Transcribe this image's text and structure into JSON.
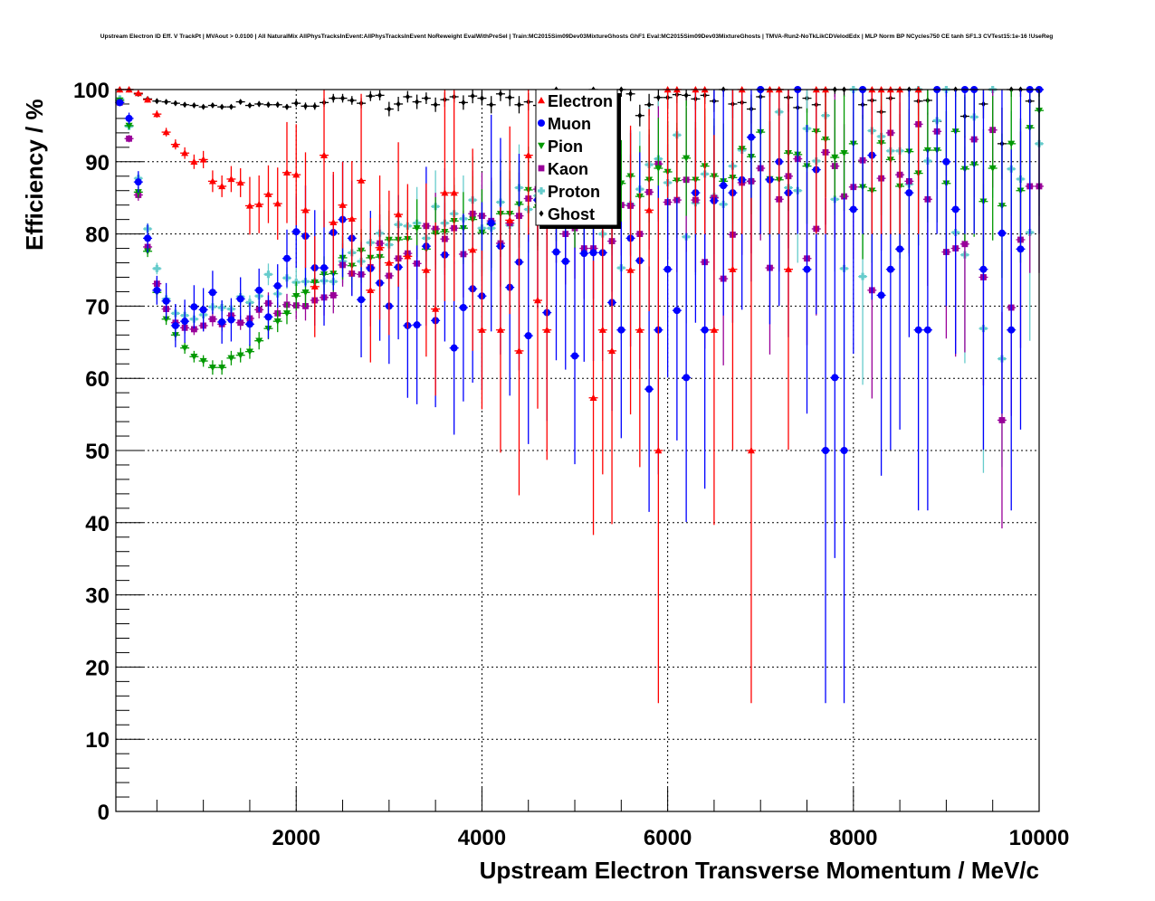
{
  "chart_data": {
    "type": "scatter",
    "title": "Upstream Electron ID Eff. V TrackPt | MVAout > 0.0100 | All NaturalMix AllPhysTracksInEvent:AllPhysTracksInEvent NoReweight EvalWithPreSel | Train:MC2015Sim09Dev03MixtureGhosts GhF1 Eval:MC2015Sim09Dev03MixtureGhosts | TMVA-Run2-NoTkLikCDVelodEdx | MLP Norm BP NCycles750 CE tanh SF1.3 CVTest15:1e-16 !UseReg",
    "xlabel": "Upstream Electron Transverse Momentum / MeV/c",
    "ylabel": "Efficiency / %",
    "xlim": [
      58,
      10000
    ],
    "ylim": [
      0,
      100
    ],
    "grid": true,
    "legend_placement": "top-center",
    "x_ticks": [
      2000,
      4000,
      6000,
      8000,
      10000
    ],
    "x_tick_labels": [
      "2000",
      "4000",
      "6000",
      "8000",
      "10000"
    ],
    "y_ticks": [
      0,
      10,
      20,
      30,
      40,
      50,
      60,
      70,
      80,
      90,
      100
    ],
    "y_tick_labels": [
      "0",
      "10",
      "20",
      "30",
      "40",
      "50",
      "60",
      "70",
      "80",
      "90",
      "100"
    ],
    "x_start": 100,
    "x_step": 100,
    "series": [
      {
        "name": "Electron",
        "color": "#ff0000",
        "marker": "triangle-up",
        "values": [
          100,
          100,
          99.5,
          98.6,
          96.6,
          94.1,
          92.4,
          91.2,
          90.0,
          90.3,
          87.3,
          86.6,
          87.6,
          87.1,
          83.9,
          84.1,
          85.5,
          84.2,
          88.5,
          88.2,
          83.3,
          72.7,
          90.9,
          81.6,
          84.0,
          82.1,
          87.4,
          72.2,
          78.1,
          76.0,
          82.7,
          76.9,
          null,
          75.0,
          69.6,
          85.7,
          85.7,
          null,
          77.8,
          66.7,
          null,
          66.7,
          81.9,
          63.8,
          90.9,
          70.8,
          66.7,
          null,
          null,
          null,
          null,
          57.3,
          66.7,
          63.8,
          null,
          75.0,
          66.7,
          83.3,
          50.0,
          100,
          100,
          null,
          100,
          100,
          66.7,
          null,
          75.1,
          100,
          50.0,
          null,
          100,
          100,
          75.1,
          null,
          null,
          100,
          100,
          null,
          null,
          null,
          null,
          100,
          100,
          100,
          100,
          null,
          100,
          null,
          null,
          null,
          null,
          null,
          null,
          null,
          null,
          null,
          null,
          null,
          null,
          null
        ],
        "errors": [
          0.2,
          0.2,
          0.3,
          0.4,
          0.5,
          0.6,
          0.7,
          0.8,
          1,
          1.2,
          1.5,
          1.5,
          1.8,
          2,
          4,
          4,
          4,
          5,
          7,
          7,
          8,
          7,
          10,
          7,
          6,
          8,
          12,
          10,
          10,
          10,
          10,
          10,
          0,
          12,
          12,
          15,
          15,
          0,
          14,
          11,
          0,
          17,
          13,
          20,
          11,
          15,
          18,
          0,
          0,
          0,
          0,
          19,
          20,
          24,
          0,
          20,
          19,
          14,
          35,
          15,
          15,
          0,
          20,
          20,
          27,
          0,
          25,
          20,
          35,
          0,
          20,
          20,
          25,
          0,
          0,
          20,
          20,
          0,
          0,
          0,
          0,
          20,
          20,
          20,
          20,
          0,
          20,
          0,
          0,
          0,
          0,
          0,
          0,
          0,
          0,
          0,
          0,
          0,
          0,
          0
        ]
      },
      {
        "name": "Muon",
        "color": "#0000ff",
        "marker": "circle",
        "values": [
          98.2,
          96.0,
          87.2,
          79.4,
          72.2,
          70.7,
          67.3,
          67.9,
          69.9,
          69.5,
          71.9,
          67.8,
          68.1,
          71.0,
          67.5,
          72.2,
          68.5,
          72.8,
          76.6,
          80.3,
          79.7,
          75.3,
          75.3,
          80.2,
          82.0,
          79.4,
          70.9,
          75.2,
          73.2,
          70.0,
          75.4,
          67.3,
          67.4,
          78.3,
          68.0,
          77.1,
          64.2,
          69.8,
          72.4,
          71.4,
          81.5,
          78.3,
          72.6,
          76.1,
          65.9,
          84.7,
          69.1,
          77.5,
          76.2,
          63.1,
          77.3,
          77.4,
          77.4,
          70.5,
          66.7,
          79.4,
          76.3,
          58.5,
          66.7,
          75.1,
          69.4,
          60.1,
          85.7,
          66.7,
          84.6,
          86.7,
          85.7,
          87.5,
          93.4,
          100,
          87.5,
          90.0,
          85.7,
          100,
          75.1,
          88.9,
          50.0,
          60.1,
          50.0,
          83.4,
          100,
          90.9,
          71.5,
          75.1,
          77.9,
          85.7,
          66.7,
          66.7,
          100,
          90.0,
          83.4,
          100,
          100,
          75.1,
          null,
          80.1,
          66.7,
          77.9,
          100,
          100
        ],
        "errors": [
          0.5,
          0.8,
          1.5,
          2,
          2,
          2.5,
          3,
          3,
          3,
          3,
          3,
          3,
          3,
          3,
          3,
          3,
          3,
          3,
          4,
          5,
          7,
          8,
          8,
          8,
          8,
          8,
          8,
          8,
          8,
          8,
          10,
          10,
          11,
          11,
          12,
          12,
          12,
          13,
          13,
          13,
          15,
          15,
          15,
          15,
          15,
          15,
          15,
          15,
          15,
          15,
          15,
          15,
          15,
          15,
          15,
          15,
          15,
          17,
          20,
          15,
          18,
          20,
          18,
          22,
          18,
          18,
          18,
          18,
          20,
          20,
          20,
          20,
          20,
          20,
          20,
          20,
          35,
          25,
          35,
          20,
          20,
          20,
          25,
          25,
          25,
          20,
          25,
          25,
          20,
          20,
          20,
          20,
          20,
          25,
          0,
          25,
          25,
          25,
          20,
          20
        ]
      },
      {
        "name": "Pion",
        "color": "#009900",
        "marker": "triangle-down",
        "values": [
          98.5,
          95.0,
          85.8,
          77.6,
          71.9,
          68.2,
          66.0,
          64.2,
          63.0,
          62.4,
          61.5,
          61.5,
          62.8,
          63.2,
          63.7,
          65.2,
          66.9,
          67.9,
          69.0,
          71.4,
          71.9,
          73.3,
          74.4,
          74.5,
          76.7,
          75.6,
          77.7,
          76.7,
          76.8,
          79.2,
          79.2,
          79.3,
          80.8,
          77.9,
          80.1,
          80.3,
          81.8,
          80.8,
          82.0,
          80.2,
          81.3,
          82.8,
          82.8,
          84.1,
          86.1,
          83.7,
          84,
          85,
          86,
          84,
          85,
          86,
          86,
          84,
          87,
          88.0,
          85.2,
          87.5,
          89.1,
          88.6,
          87.4,
          90.5,
          87.5,
          89.4,
          88.0,
          87.3,
          87.8,
          91.8,
          90.7,
          94.1,
          87.6,
          87.5,
          91.2,
          91.0,
          89.4,
          94.2,
          93.1,
          90.6,
          91.2,
          92.5,
          86.5,
          86.0,
          92.6,
          90.3,
          86.6,
          91.4,
          88.4,
          91.6,
          91.6,
          87.0,
          94.2,
          89.0,
          89.6,
          84.5,
          89.1,
          83.9,
          92.5,
          86.0,
          94.7,
          97.1
        ],
        "errors": [
          0.3,
          0.5,
          0.8,
          0.8,
          0.8,
          0.8,
          0.8,
          0.8,
          0.8,
          0.8,
          1,
          1,
          1,
          1,
          1,
          1.2,
          1.5,
          1.5,
          1.5,
          2,
          2,
          2,
          2.5,
          2.5,
          3,
          3,
          3,
          3,
          3.5,
          4,
          4,
          4,
          4,
          4,
          5,
          5,
          5,
          5,
          6,
          6,
          6,
          6,
          6,
          6,
          6,
          6,
          6,
          6,
          6,
          6,
          6,
          6,
          6,
          6,
          6,
          6,
          7,
          7,
          7,
          7,
          8,
          8,
          8,
          8,
          8,
          8,
          8,
          8,
          8,
          6,
          8,
          8,
          8,
          8,
          8,
          8,
          8,
          8,
          8,
          8,
          10,
          10,
          10,
          10,
          10,
          10,
          10,
          10,
          10,
          10,
          8,
          10,
          10,
          10,
          10,
          10,
          10,
          10,
          8,
          5
        ]
      },
      {
        "name": "Kaon",
        "color": "#990099",
        "marker": "square",
        "values": [
          98.2,
          93.2,
          85.4,
          78.2,
          73.1,
          69.6,
          67.7,
          67.0,
          66.8,
          67.3,
          68.2,
          67.5,
          68.7,
          67.7,
          68.3,
          69.5,
          70.4,
          69.0,
          70.2,
          70.1,
          70.0,
          70.8,
          71.2,
          71.5,
          75.7,
          74.5,
          74.4,
          75.4,
          78.7,
          74.2,
          76.6,
          77.3,
          75.9,
          81.1,
          80.7,
          79.3,
          80.8,
          77.2,
          82.8,
          82.5,
          81.8,
          78.7,
          81.5,
          82.5,
          84.9,
          86.2,
          82,
          83,
          80.0,
          80.8,
          78.0,
          78,
          82,
          79,
          84,
          83.9,
          80.0,
          85.8,
          89.7,
          84.4,
          84.7,
          87.5,
          84.7,
          76.1,
          85.0,
          73.8,
          79.9,
          87.1,
          87.3,
          89.1,
          75.3,
          84.8,
          88.0,
          90.4,
          76.6,
          80.7,
          91.3,
          89.4,
          85.2,
          86.5,
          90.2,
          72.2,
          87.7,
          94.0,
          88.2,
          87.3,
          95.2,
          84.8,
          94.2,
          77.5,
          78.0,
          78.6,
          93.1,
          74.0,
          94.4,
          54.2,
          69.8,
          79.2,
          86.6,
          86.6
        ],
        "errors": [
          0.3,
          0.5,
          0.8,
          0.8,
          0.8,
          0.8,
          0.8,
          0.8,
          0.8,
          0.8,
          1,
          1,
          1,
          1,
          1,
          1.2,
          1.5,
          1.5,
          1.5,
          2,
          2,
          2,
          2.5,
          2.5,
          3,
          3,
          3,
          3,
          4,
          4,
          4,
          5,
          5,
          5,
          5,
          5,
          5,
          6,
          6,
          6,
          6,
          6,
          6,
          6,
          6,
          7,
          7,
          7,
          7,
          7,
          7,
          7,
          7,
          7,
          7,
          7,
          8,
          8,
          8,
          8,
          10,
          10,
          10,
          12,
          10,
          12,
          10,
          10,
          10,
          10,
          12,
          10,
          10,
          10,
          12,
          12,
          10,
          10,
          10,
          10,
          10,
          15,
          10,
          8,
          10,
          10,
          8,
          12,
          8,
          12,
          15,
          15,
          8,
          15,
          8,
          15,
          15,
          15,
          12,
          12
        ]
      },
      {
        "name": "Proton",
        "color": "#66cccc",
        "marker": "plus",
        "values": [
          98.7,
          94.9,
          87.7,
          80.7,
          75.2,
          71.0,
          69.0,
          68.7,
          68.2,
          68.8,
          69.9,
          69.8,
          69.6,
          71.3,
          70.5,
          71.4,
          74.4,
          71.7,
          73.9,
          73.3,
          73.4,
          73.4,
          73.5,
          73.4,
          76.2,
          77.4,
          76.2,
          78.8,
          80.1,
          78.5,
          81.3,
          81.1,
          81.5,
          79.4,
          83.8,
          81.5,
          82.8,
          82.1,
          84.7,
          80.8,
          80.8,
          84.4,
          81.2,
          86.4,
          83.4,
          85.3,
          84,
          83,
          82,
          85,
          83,
          84,
          80,
          84,
          75.3,
          84.1,
          86.2,
          89.6,
          90.4,
          87.1,
          93.7,
          79.6,
          84.3,
          88.3,
          85.2,
          84.1,
          89.4,
          91.6,
          87.3,
          100,
          null,
          96.9,
          86.4,
          86.0,
          94.6,
          90.1,
          96.4,
          84.8,
          75.2,
          100,
          74.1,
          94.3,
          93.5,
          91.5,
          91.5,
          86.9,
          100,
          90.1,
          95.7,
          100,
          80.2,
          77.1,
          96.2,
          66.9,
          100,
          62.7,
          89.0,
          87.6,
          80.2,
          92.5
        ],
        "errors": [
          0.3,
          0.5,
          0.8,
          0.8,
          0.8,
          0.8,
          0.8,
          0.8,
          0.8,
          0.8,
          1,
          1,
          1,
          1,
          1,
          1.2,
          1.5,
          1.5,
          1.5,
          2,
          2,
          2,
          2.5,
          2.5,
          3,
          3,
          3,
          3,
          4,
          4,
          4,
          5,
          5,
          5,
          5,
          5,
          5,
          6,
          6,
          6,
          6,
          6,
          6,
          6,
          6,
          7,
          7,
          7,
          7,
          7,
          7,
          7,
          7,
          7,
          10,
          7,
          8,
          8,
          8,
          8,
          8,
          12,
          10,
          8,
          8,
          10,
          8,
          6,
          8,
          15,
          0,
          6,
          10,
          10,
          6,
          8,
          5,
          10,
          15,
          10,
          15,
          6,
          6,
          8,
          8,
          10,
          15,
          8,
          6,
          12,
          15,
          15,
          6,
          20,
          15,
          15,
          8,
          8,
          15,
          10
        ]
      },
      {
        "name": "Ghost",
        "color": "#000000",
        "marker": "diamond",
        "values": [
          100,
          100,
          99.4,
          98.7,
          98.4,
          98.3,
          98.1,
          97.9,
          97.8,
          97.6,
          97.8,
          97.6,
          97.6,
          98.3,
          97.8,
          98.0,
          97.9,
          97.9,
          97.6,
          98.1,
          97.7,
          97.7,
          98.2,
          98.8,
          98.8,
          98.5,
          98.1,
          99.1,
          99.2,
          97.3,
          98.0,
          99.0,
          98.3,
          98.8,
          97.9,
          98.6,
          99.0,
          98.2,
          99.1,
          98.8,
          97.9,
          99.4,
          98.9,
          97.9,
          98.3,
          97.8,
          99,
          100,
          99,
          99.5,
          98,
          100,
          99,
          98.5,
          100,
          99.4,
          96.4,
          97.9,
          98.9,
          98.9,
          99.3,
          99.2,
          98.7,
          99.2,
          98.4,
          100,
          98.0,
          98.2,
          97.3,
          99.0,
          100,
          100,
          98.9,
          97.5,
          98.8,
          97.9,
          100,
          100,
          100,
          100,
          97.9,
          98.5,
          96.9,
          98.8,
          100,
          100,
          98.4,
          98.5,
          95.6,
          100,
          100,
          96.3,
          100,
          98.0,
          100,
          92.5,
          100,
          100,
          98.4,
          100
        ],
        "errors": [
          0.1,
          0.1,
          0.2,
          0.3,
          0.3,
          0.3,
          0.3,
          0.3,
          0.3,
          0.3,
          0.3,
          0.3,
          0.3,
          0.3,
          0.3,
          0.4,
          0.4,
          0.4,
          0.4,
          0.5,
          0.5,
          0.5,
          0.6,
          0.6,
          0.6,
          0.6,
          0.7,
          0.7,
          0.7,
          1,
          1,
          0.8,
          1,
          0.8,
          1,
          1,
          0.8,
          1,
          1,
          1,
          1.2,
          1,
          1.2,
          1.2,
          1.2,
          1.2,
          1.2,
          1,
          1.2,
          1,
          1.5,
          1,
          1.2,
          1.5,
          1,
          1,
          1.5,
          1.5,
          1.5,
          1.5,
          1.2,
          1.5,
          1.5,
          1.2,
          1.5,
          1,
          2,
          2,
          2,
          1.5,
          1,
          1,
          2,
          2,
          2,
          2,
          1,
          1,
          1,
          1,
          2,
          2,
          2.5,
          2,
          1,
          1,
          2,
          2,
          3,
          1,
          1,
          3,
          1,
          2,
          1,
          5,
          1,
          1,
          2,
          1
        ]
      }
    ]
  }
}
